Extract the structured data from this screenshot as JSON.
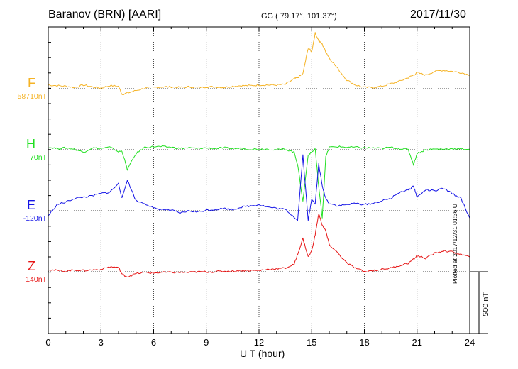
{
  "header": {
    "station": "Baranov (BRN)  [AARI]",
    "coords": "GG ( 79.17°, 101.37°)",
    "date": "2017/11/30"
  },
  "footer": {
    "plotted": "Plotted at 2017/12/31 01:36 UT"
  },
  "colors": {
    "F": "#f5b325",
    "H": "#22e022",
    "E": "#1414e6",
    "Z": "#e61414",
    "axis": "#000000"
  },
  "chart_data": {
    "type": "line",
    "title": "",
    "xlabel": "U T (hour)",
    "ylabel": "",
    "xlim": [
      0,
      24
    ],
    "x_ticks": [
      "0",
      "3",
      "6",
      "9",
      "12",
      "15",
      "18",
      "21",
      "24"
    ],
    "grid": true,
    "scale_bar": {
      "label": "500 nT",
      "value": 500
    },
    "x": [
      0,
      0.5,
      1,
      1.5,
      2,
      2.5,
      3,
      3.5,
      4,
      4.2,
      4.5,
      5,
      5.5,
      6,
      6.5,
      7,
      7.5,
      8,
      8.5,
      9,
      9.5,
      10,
      10.5,
      11,
      11.5,
      12,
      12.5,
      13,
      13.5,
      14,
      14.2,
      14.5,
      14.8,
      15,
      15.2,
      15.4,
      15.6,
      15.8,
      16,
      16.5,
      17,
      17.5,
      18,
      18.5,
      19,
      19.5,
      20,
      20.5,
      20.8,
      21,
      21.5,
      22,
      22.5,
      23,
      23.5,
      24
    ],
    "series": [
      {
        "name": "F",
        "baseline": "58710nT",
        "values": [
          30,
          25,
          20,
          10,
          30,
          15,
          5,
          25,
          20,
          -45,
          -35,
          -15,
          5,
          10,
          15,
          15,
          10,
          15,
          10,
          15,
          15,
          10,
          20,
          25,
          25,
          30,
          30,
          30,
          35,
          80,
          90,
          120,
          330,
          300,
          450,
          390,
          360,
          300,
          250,
          160,
          70,
          30,
          10,
          10,
          20,
          40,
          60,
          90,
          110,
          130,
          110,
          140,
          150,
          140,
          130,
          110
        ]
      },
      {
        "name": "H",
        "baseline": "70nT",
        "values": [
          20,
          10,
          15,
          5,
          -20,
          15,
          10,
          20,
          -15,
          -10,
          -160,
          -30,
          20,
          25,
          25,
          20,
          10,
          15,
          10,
          15,
          10,
          15,
          10,
          10,
          5,
          5,
          5,
          0,
          5,
          -20,
          -120,
          -420,
          -40,
          -20,
          10,
          -300,
          -550,
          -60,
          20,
          25,
          20,
          20,
          15,
          15,
          10,
          20,
          10,
          0,
          -120,
          -30,
          0,
          5,
          5,
          10,
          5,
          5
        ]
      },
      {
        "name": "E",
        "baseline": "-120nT",
        "values": [
          -40,
          50,
          70,
          100,
          110,
          120,
          140,
          150,
          220,
          100,
          250,
          80,
          60,
          20,
          10,
          5,
          -20,
          0,
          -10,
          5,
          10,
          20,
          10,
          30,
          40,
          50,
          30,
          20,
          10,
          -50,
          -80,
          450,
          -80,
          100,
          50,
          380,
          200,
          100,
          60,
          40,
          50,
          60,
          50,
          60,
          80,
          100,
          150,
          170,
          200,
          110,
          170,
          160,
          180,
          140,
          100,
          -60
        ]
      },
      {
        "name": "Z",
        "baseline": "140nT",
        "values": [
          20,
          10,
          5,
          15,
          10,
          15,
          20,
          40,
          35,
          -20,
          -40,
          -15,
          -5,
          -10,
          -5,
          -5,
          -5,
          -5,
          0,
          0,
          0,
          5,
          5,
          10,
          10,
          10,
          20,
          25,
          30,
          60,
          140,
          270,
          120,
          170,
          300,
          470,
          380,
          330,
          220,
          150,
          70,
          30,
          0,
          10,
          20,
          30,
          50,
          70,
          100,
          130,
          110,
          150,
          170,
          160,
          140,
          120
        ]
      }
    ]
  }
}
